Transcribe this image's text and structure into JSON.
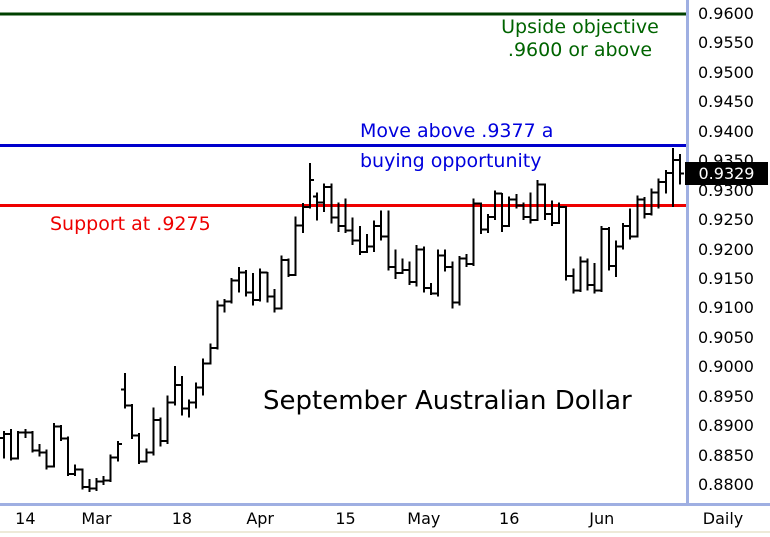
{
  "chart_data": {
    "type": "bar",
    "subtype": "ohlc-daily-bars",
    "title": "September Australian Dollar",
    "timeframe_label": "Daily",
    "last_price": "0.9329",
    "y_axis": {
      "min": 0.88,
      "max": 0.96,
      "tick_step": 0.005,
      "tick_labels": [
        "0.9600",
        "0.9550",
        "0.9500",
        "0.9450",
        "0.9400",
        "0.9350",
        "0.9300",
        "0.9250",
        "0.9200",
        "0.9150",
        "0.9100",
        "0.9050",
        "0.9000",
        "0.8950",
        "0.8900",
        "0.8850",
        "0.8800"
      ]
    },
    "x_ticks": [
      {
        "label": "14",
        "bar": 3
      },
      {
        "label": "Mar",
        "bar": 13
      },
      {
        "label": "18",
        "bar": 25
      },
      {
        "label": "Apr",
        "bar": 36
      },
      {
        "label": "15",
        "bar": 48
      },
      {
        "label": "May",
        "bar": 59
      },
      {
        "label": "16",
        "bar": 71
      },
      {
        "label": "Jun",
        "bar": 84
      }
    ],
    "annotations": {
      "upside_objective": {
        "line1": "Upside objective",
        "line2": ".9600 or above",
        "level": 0.96,
        "line_color": "#004000",
        "text_color": "#006400"
      },
      "buy_signal": {
        "line1": "Move above .9377 a",
        "line2": "buying opportunity",
        "level": 0.9377,
        "line_color": "#0000cc",
        "text_color": "#0000dd"
      },
      "support": {
        "text": "Support at .9275",
        "level": 0.9275,
        "line_color": "#ee0000",
        "text_color": "#ee0000"
      }
    },
    "bars_format": [
      "open",
      "high",
      "low",
      "close"
    ],
    "bars": [
      [
        0.888,
        0.8892,
        0.8845,
        0.8887
      ],
      [
        0.8887,
        0.8895,
        0.8842,
        0.8845
      ],
      [
        0.8845,
        0.8892,
        0.8843,
        0.8889
      ],
      [
        0.8889,
        0.8895,
        0.888,
        0.8889
      ],
      [
        0.8889,
        0.8892,
        0.8855,
        0.8859
      ],
      [
        0.8859,
        0.887,
        0.8848,
        0.8855
      ],
      [
        0.8855,
        0.886,
        0.8826,
        0.8831
      ],
      [
        0.8831,
        0.8905,
        0.883,
        0.8899
      ],
      [
        0.8899,
        0.8902,
        0.8875,
        0.8879
      ],
      [
        0.8879,
        0.8882,
        0.8815,
        0.8819
      ],
      [
        0.8819,
        0.8835,
        0.8815,
        0.8826
      ],
      [
        0.8826,
        0.8828,
        0.8792,
        0.8797
      ],
      [
        0.8797,
        0.881,
        0.8788,
        0.8794
      ],
      [
        0.8794,
        0.8812,
        0.879,
        0.8806
      ],
      [
        0.8806,
        0.8815,
        0.88,
        0.8808
      ],
      [
        0.8808,
        0.8852,
        0.8805,
        0.8847
      ],
      [
        0.8847,
        0.8875,
        0.884,
        0.887
      ],
      [
        0.8962,
        0.899,
        0.893,
        0.8935
      ],
      [
        0.8935,
        0.8938,
        0.8878,
        0.8884
      ],
      [
        0.8884,
        0.8888,
        0.8836,
        0.884
      ],
      [
        0.884,
        0.8862,
        0.8838,
        0.8855
      ],
      [
        0.8855,
        0.8932,
        0.885,
        0.891
      ],
      [
        0.891,
        0.8915,
        0.8865,
        0.8875
      ],
      [
        0.8875,
        0.8952,
        0.887,
        0.894
      ],
      [
        0.894,
        0.9002,
        0.8935,
        0.897
      ],
      [
        0.897,
        0.8985,
        0.8918,
        0.893
      ],
      [
        0.893,
        0.8945,
        0.8915,
        0.894
      ],
      [
        0.894,
        0.8974,
        0.893,
        0.8966
      ],
      [
        0.8966,
        0.9015,
        0.8952,
        0.9006
      ],
      [
        0.9006,
        0.904,
        0.9005,
        0.9033
      ],
      [
        0.9033,
        0.9113,
        0.903,
        0.9105
      ],
      [
        0.9105,
        0.9116,
        0.9093,
        0.9112
      ],
      [
        0.9112,
        0.9152,
        0.9108,
        0.9147
      ],
      [
        0.9147,
        0.917,
        0.9127,
        0.9161
      ],
      [
        0.9161,
        0.9165,
        0.912,
        0.9127
      ],
      [
        0.9127,
        0.916,
        0.9105,
        0.9114
      ],
      [
        0.9114,
        0.9168,
        0.9112,
        0.9161
      ],
      [
        0.9161,
        0.9162,
        0.911,
        0.912
      ],
      [
        0.912,
        0.9133,
        0.9093,
        0.91
      ],
      [
        0.91,
        0.919,
        0.9098,
        0.9182
      ],
      [
        0.9182,
        0.9185,
        0.9153,
        0.9157
      ],
      [
        0.9157,
        0.9256,
        0.9155,
        0.9241
      ],
      [
        0.9241,
        0.9279,
        0.9228,
        0.9272
      ],
      [
        0.9272,
        0.9347,
        0.927,
        0.9318
      ],
      [
        0.929,
        0.9297,
        0.9249,
        0.928
      ],
      [
        0.928,
        0.9312,
        0.9264,
        0.9306
      ],
      [
        0.9306,
        0.9312,
        0.9244,
        0.9254
      ],
      [
        0.9254,
        0.928,
        0.923,
        0.924
      ],
      [
        0.924,
        0.9287,
        0.9228,
        0.9232
      ],
      [
        0.9232,
        0.9254,
        0.9208,
        0.9215
      ],
      [
        0.9215,
        0.924,
        0.9191,
        0.9196
      ],
      [
        0.9196,
        0.9226,
        0.9194,
        0.9205
      ],
      [
        0.9205,
        0.9249,
        0.9196,
        0.924
      ],
      [
        0.924,
        0.9266,
        0.9215,
        0.9222
      ],
      [
        0.9222,
        0.9266,
        0.9164,
        0.917
      ],
      [
        0.917,
        0.92,
        0.915,
        0.916
      ],
      [
        0.916,
        0.9185,
        0.9158,
        0.9165
      ],
      [
        0.9165,
        0.918,
        0.914,
        0.9145
      ],
      [
        0.9145,
        0.9208,
        0.9137,
        0.92
      ],
      [
        0.92,
        0.9205,
        0.9127,
        0.9135
      ],
      [
        0.9135,
        0.9143,
        0.9123,
        0.9125
      ],
      [
        0.9125,
        0.92,
        0.912,
        0.919
      ],
      [
        0.919,
        0.92,
        0.9163,
        0.917
      ],
      [
        0.917,
        0.918,
        0.91,
        0.911
      ],
      [
        0.911,
        0.9189,
        0.9105,
        0.9185
      ],
      [
        0.9185,
        0.9192,
        0.917,
        0.9175
      ],
      [
        0.9175,
        0.9287,
        0.9172,
        0.9278
      ],
      [
        0.9278,
        0.928,
        0.9226,
        0.9234
      ],
      [
        0.9234,
        0.926,
        0.9228,
        0.9255
      ],
      [
        0.9255,
        0.93,
        0.925,
        0.9295
      ],
      [
        0.9295,
        0.9296,
        0.923,
        0.924
      ],
      [
        0.924,
        0.929,
        0.9238,
        0.9285
      ],
      [
        0.9285,
        0.9294,
        0.927,
        0.9275
      ],
      [
        0.9275,
        0.928,
        0.925,
        0.9255
      ],
      [
        0.9255,
        0.9297,
        0.9244,
        0.925
      ],
      [
        0.925,
        0.9318,
        0.9248,
        0.931
      ],
      [
        0.931,
        0.9312,
        0.925,
        0.926
      ],
      [
        0.926,
        0.9283,
        0.924,
        0.9245
      ],
      [
        0.9245,
        0.928,
        0.9243,
        0.9272
      ],
      [
        0.9272,
        0.9274,
        0.9147,
        0.9155
      ],
      [
        0.9155,
        0.9168,
        0.9125,
        0.913
      ],
      [
        0.913,
        0.9188,
        0.9128,
        0.918
      ],
      [
        0.918,
        0.9185,
        0.913,
        0.914
      ],
      [
        0.914,
        0.9177,
        0.9125,
        0.913
      ],
      [
        0.913,
        0.924,
        0.9128,
        0.9235
      ],
      [
        0.9235,
        0.9238,
        0.9164,
        0.9172
      ],
      [
        0.9172,
        0.9215,
        0.9153,
        0.9205
      ],
      [
        0.9205,
        0.9245,
        0.92,
        0.924
      ],
      [
        0.924,
        0.927,
        0.9217,
        0.9222
      ],
      [
        0.9222,
        0.9292,
        0.922,
        0.9285
      ],
      [
        0.9285,
        0.9289,
        0.9253,
        0.926
      ],
      [
        0.926,
        0.9304,
        0.9258,
        0.9297
      ],
      [
        0.9297,
        0.9321,
        0.927,
        0.9315
      ],
      [
        0.9315,
        0.9335,
        0.9295,
        0.933
      ],
      [
        0.933,
        0.9372,
        0.9272,
        0.9352
      ],
      [
        0.9352,
        0.9362,
        0.931,
        0.9329
      ]
    ],
    "style": {
      "bar_color": "#000000",
      "frame_color": "#9fafe2",
      "bottom_accent_color": "#eeead9",
      "last_price_box_bg": "#000000",
      "last_price_box_text": "#ffffff",
      "grid": "off",
      "legend": "none"
    }
  }
}
